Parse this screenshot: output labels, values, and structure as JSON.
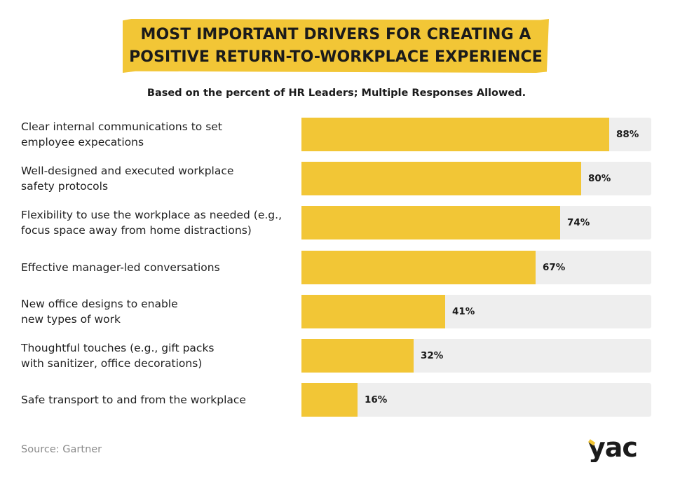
{
  "header": {
    "title_line1": "MOST IMPORTANT DRIVERS FOR CREATING A",
    "title_line2": "POSITIVE RETURN-TO-WORKPLACE EXPERIENCE",
    "subtitle": "Based on the percent of HR Leaders; Multiple Responses Allowed."
  },
  "colors": {
    "bar": "#f2c636",
    "track": "#eeeeee",
    "text": "#1f1f1f",
    "muted": "#8a8a8a"
  },
  "chart_data": {
    "type": "bar",
    "orientation": "horizontal",
    "title": "MOST IMPORTANT DRIVERS FOR CREATING A POSITIVE RETURN-TO-WORKPLACE EXPERIENCE",
    "subtitle": "Based on the percent of HR Leaders; Multiple Responses Allowed.",
    "xlim": [
      0,
      100
    ],
    "unit": "%",
    "categories": [
      [
        "Clear internal communications to set",
        "employee expecations"
      ],
      [
        "Well-designed and executed workplace",
        "safety protocols"
      ],
      [
        "Flexibility to use the workplace as needed (e.g.,",
        "focus space away from home distractions)"
      ],
      [
        "Effective manager-led conversations"
      ],
      [
        "New office designs to enable",
        "new types of work"
      ],
      [
        "Thoughtful touches (e.g., gift packs",
        "with sanitizer, office decorations)"
      ],
      [
        "Safe transport to and from the workplace"
      ]
    ],
    "values": [
      88,
      80,
      74,
      67,
      41,
      32,
      16
    ],
    "value_labels": [
      "88%",
      "80%",
      "74%",
      "67%",
      "41%",
      "32%",
      "16%"
    ]
  },
  "footer": {
    "source": "Source: Gartner",
    "logo_text": "yac"
  }
}
